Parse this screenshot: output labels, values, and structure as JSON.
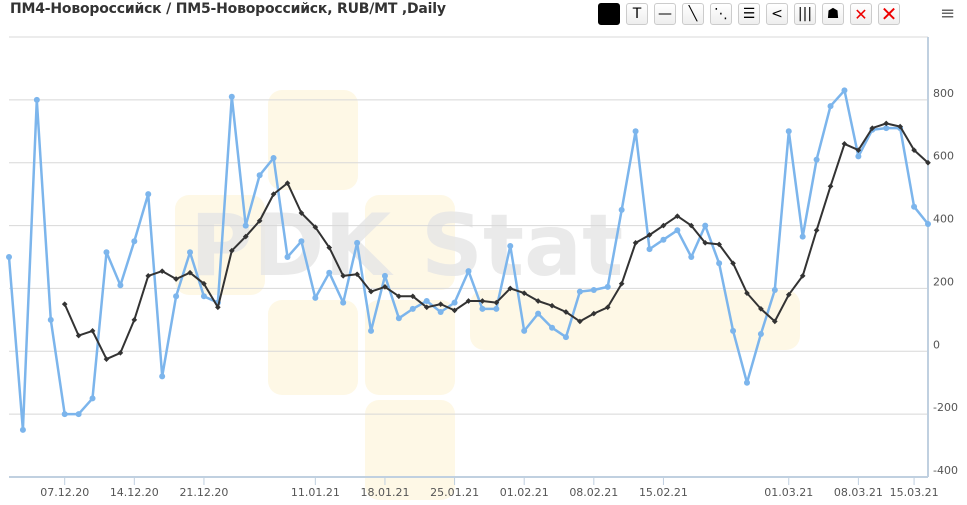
{
  "title": "ПМ4-Новороссийск / ПМ5-Новороссийск, RUB/MT ,Daily",
  "watermark": "PDK Stat",
  "toolbar": [
    {
      "name": "color-swatch-button",
      "icon": "black-square",
      "glyph": ""
    },
    {
      "name": "text-tool-button",
      "icon": "text-icon",
      "glyph": "T"
    },
    {
      "name": "horizontal-line-button",
      "icon": "horizontal-line-icon",
      "glyph": "—"
    },
    {
      "name": "trend-line-button",
      "icon": "diagonal-line-icon",
      "glyph": "╲"
    },
    {
      "name": "parallel-lines-button",
      "icon": "parallel-diagonal-icon",
      "glyph": "⋱"
    },
    {
      "name": "horizontal-channel-button",
      "icon": "three-lines-icon",
      "glyph": "☰"
    },
    {
      "name": "fan-lines-button",
      "icon": "fan-icon",
      "glyph": "<"
    },
    {
      "name": "vertical-lines-button",
      "icon": "vertical-lines-icon",
      "glyph": "|||"
    },
    {
      "name": "fibonacci-button",
      "icon": "fibonacci-icon",
      "glyph": "☗"
    },
    {
      "name": "delete-selected-button",
      "icon": "small-x-icon",
      "glyph": "✕"
    },
    {
      "name": "delete-all-button",
      "icon": "large-x-icon",
      "glyph": "✕"
    }
  ],
  "menu_icon": "hamburger-icon",
  "menu_glyph": "≡",
  "colors": {
    "series": "#7cb5ec",
    "average": "#333333",
    "grid": "#d8d8d8",
    "axis": "#c0d0e0"
  },
  "chart_data": {
    "type": "line",
    "title": "ПМ4-Новороссийск / ПМ5-Новороссийск, RUB/MT ,Daily",
    "ylim": [
      -400,
      1000
    ],
    "y_ticks": [
      800,
      600,
      400,
      200,
      0,
      -200,
      -400
    ],
    "y_axis_side": "right",
    "grid": true,
    "x_ticks": [
      {
        "label": "07.12.20",
        "index": 4
      },
      {
        "label": "14.12.20",
        "index": 9
      },
      {
        "label": "21.12.20",
        "index": 14
      },
      {
        "label": "11.01.21",
        "index": 22
      },
      {
        "label": "18.01.21",
        "index": 27
      },
      {
        "label": "25.01.21",
        "index": 32
      },
      {
        "label": "01.02.21",
        "index": 37
      },
      {
        "label": "08.02.21",
        "index": 42
      },
      {
        "label": "15.02.21",
        "index": 47
      },
      {
        "label": "01.03.21",
        "index": 56
      },
      {
        "label": "08.03.21",
        "index": 61
      },
      {
        "label": "15.03.21",
        "index": 65
      }
    ],
    "series": [
      {
        "values": [
          300,
          -250,
          800,
          100,
          -200,
          -200,
          -150,
          315,
          210,
          350,
          500,
          -80,
          175,
          315,
          175,
          155,
          810,
          400,
          560,
          615,
          300,
          350,
          170,
          250,
          155,
          345,
          65,
          240,
          105,
          135,
          160,
          125,
          155,
          255,
          135,
          135,
          335,
          65,
          120,
          75,
          45,
          190,
          195,
          205,
          450,
          700,
          325,
          355,
          385,
          300,
          400,
          280,
          65,
          -100,
          55,
          195,
          700,
          365,
          610,
          780,
          830,
          620,
          705,
          710,
          710,
          460,
          405
        ]
      },
      {
        "values": [
          null,
          null,
          null,
          null,
          150,
          50,
          65,
          -25,
          -5,
          100,
          240,
          255,
          230,
          250,
          215,
          140,
          320,
          365,
          415,
          500,
          535,
          440,
          395,
          330,
          240,
          245,
          190,
          205,
          175,
          175,
          140,
          150,
          130,
          160,
          160,
          155,
          200,
          185,
          160,
          145,
          125,
          95,
          120,
          140,
          215,
          345,
          370,
          400,
          430,
          400,
          345,
          340,
          280,
          185,
          135,
          95,
          180,
          240,
          385,
          525,
          660,
          640,
          710,
          725,
          715,
          640,
          600
        ]
      }
    ]
  }
}
